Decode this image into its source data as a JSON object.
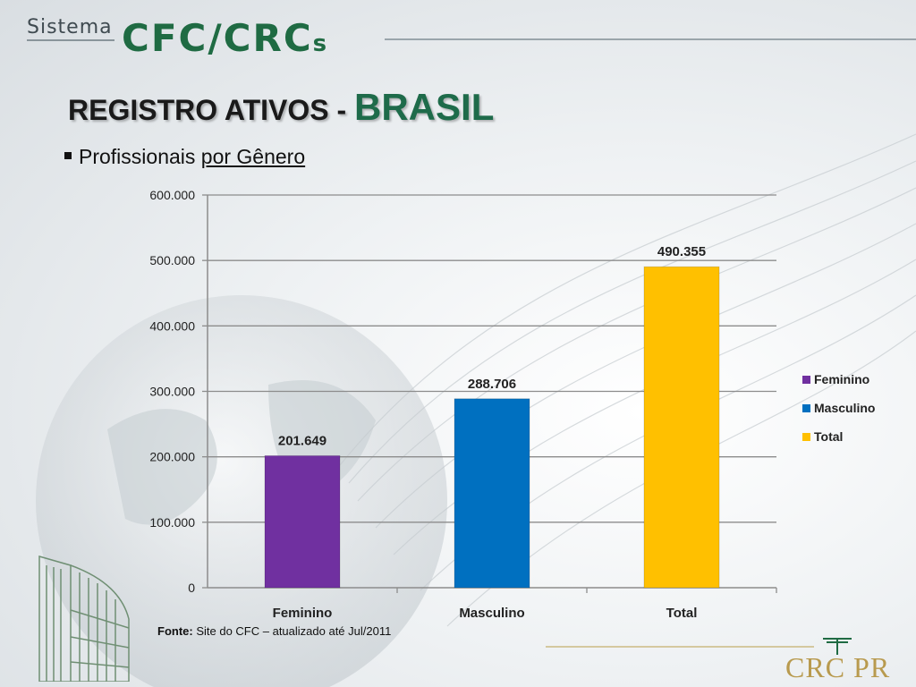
{
  "header": {
    "logo_sistema": "Sistema",
    "logo_cfc": "CFC/CRC",
    "logo_cfc_suffix": "s"
  },
  "title": {
    "main": "REGISTRO ATIVOS - ",
    "emphasis": "BRASIL"
  },
  "subtitle": {
    "prefix": "Profissionais ",
    "underlined": "por Gênero"
  },
  "source": {
    "label": "Fonte:",
    "text": " Site do CFC – atualizado até Jul/2011"
  },
  "footer_logo": "CRC PR",
  "chart_data": {
    "type": "bar",
    "categories": [
      "Feminino",
      "Masculino",
      "Total"
    ],
    "values": [
      201649,
      288706,
      490355
    ],
    "data_labels": [
      "201.649",
      "288.706",
      "490.355"
    ],
    "colors": [
      "#7030a0",
      "#0070c0",
      "#ffc000"
    ],
    "legend": [
      "Feminino",
      "Masculino",
      "Total"
    ],
    "legend_position": "right",
    "ylim": [
      0,
      600000
    ],
    "yticks": [
      0,
      100000,
      200000,
      300000,
      400000,
      500000,
      600000
    ],
    "ytick_labels": [
      "0",
      "100.000",
      "200.000",
      "300.000",
      "400.000",
      "500.000",
      "600.000"
    ],
    "grid": true,
    "title": "",
    "xlabel": "",
    "ylabel": ""
  }
}
